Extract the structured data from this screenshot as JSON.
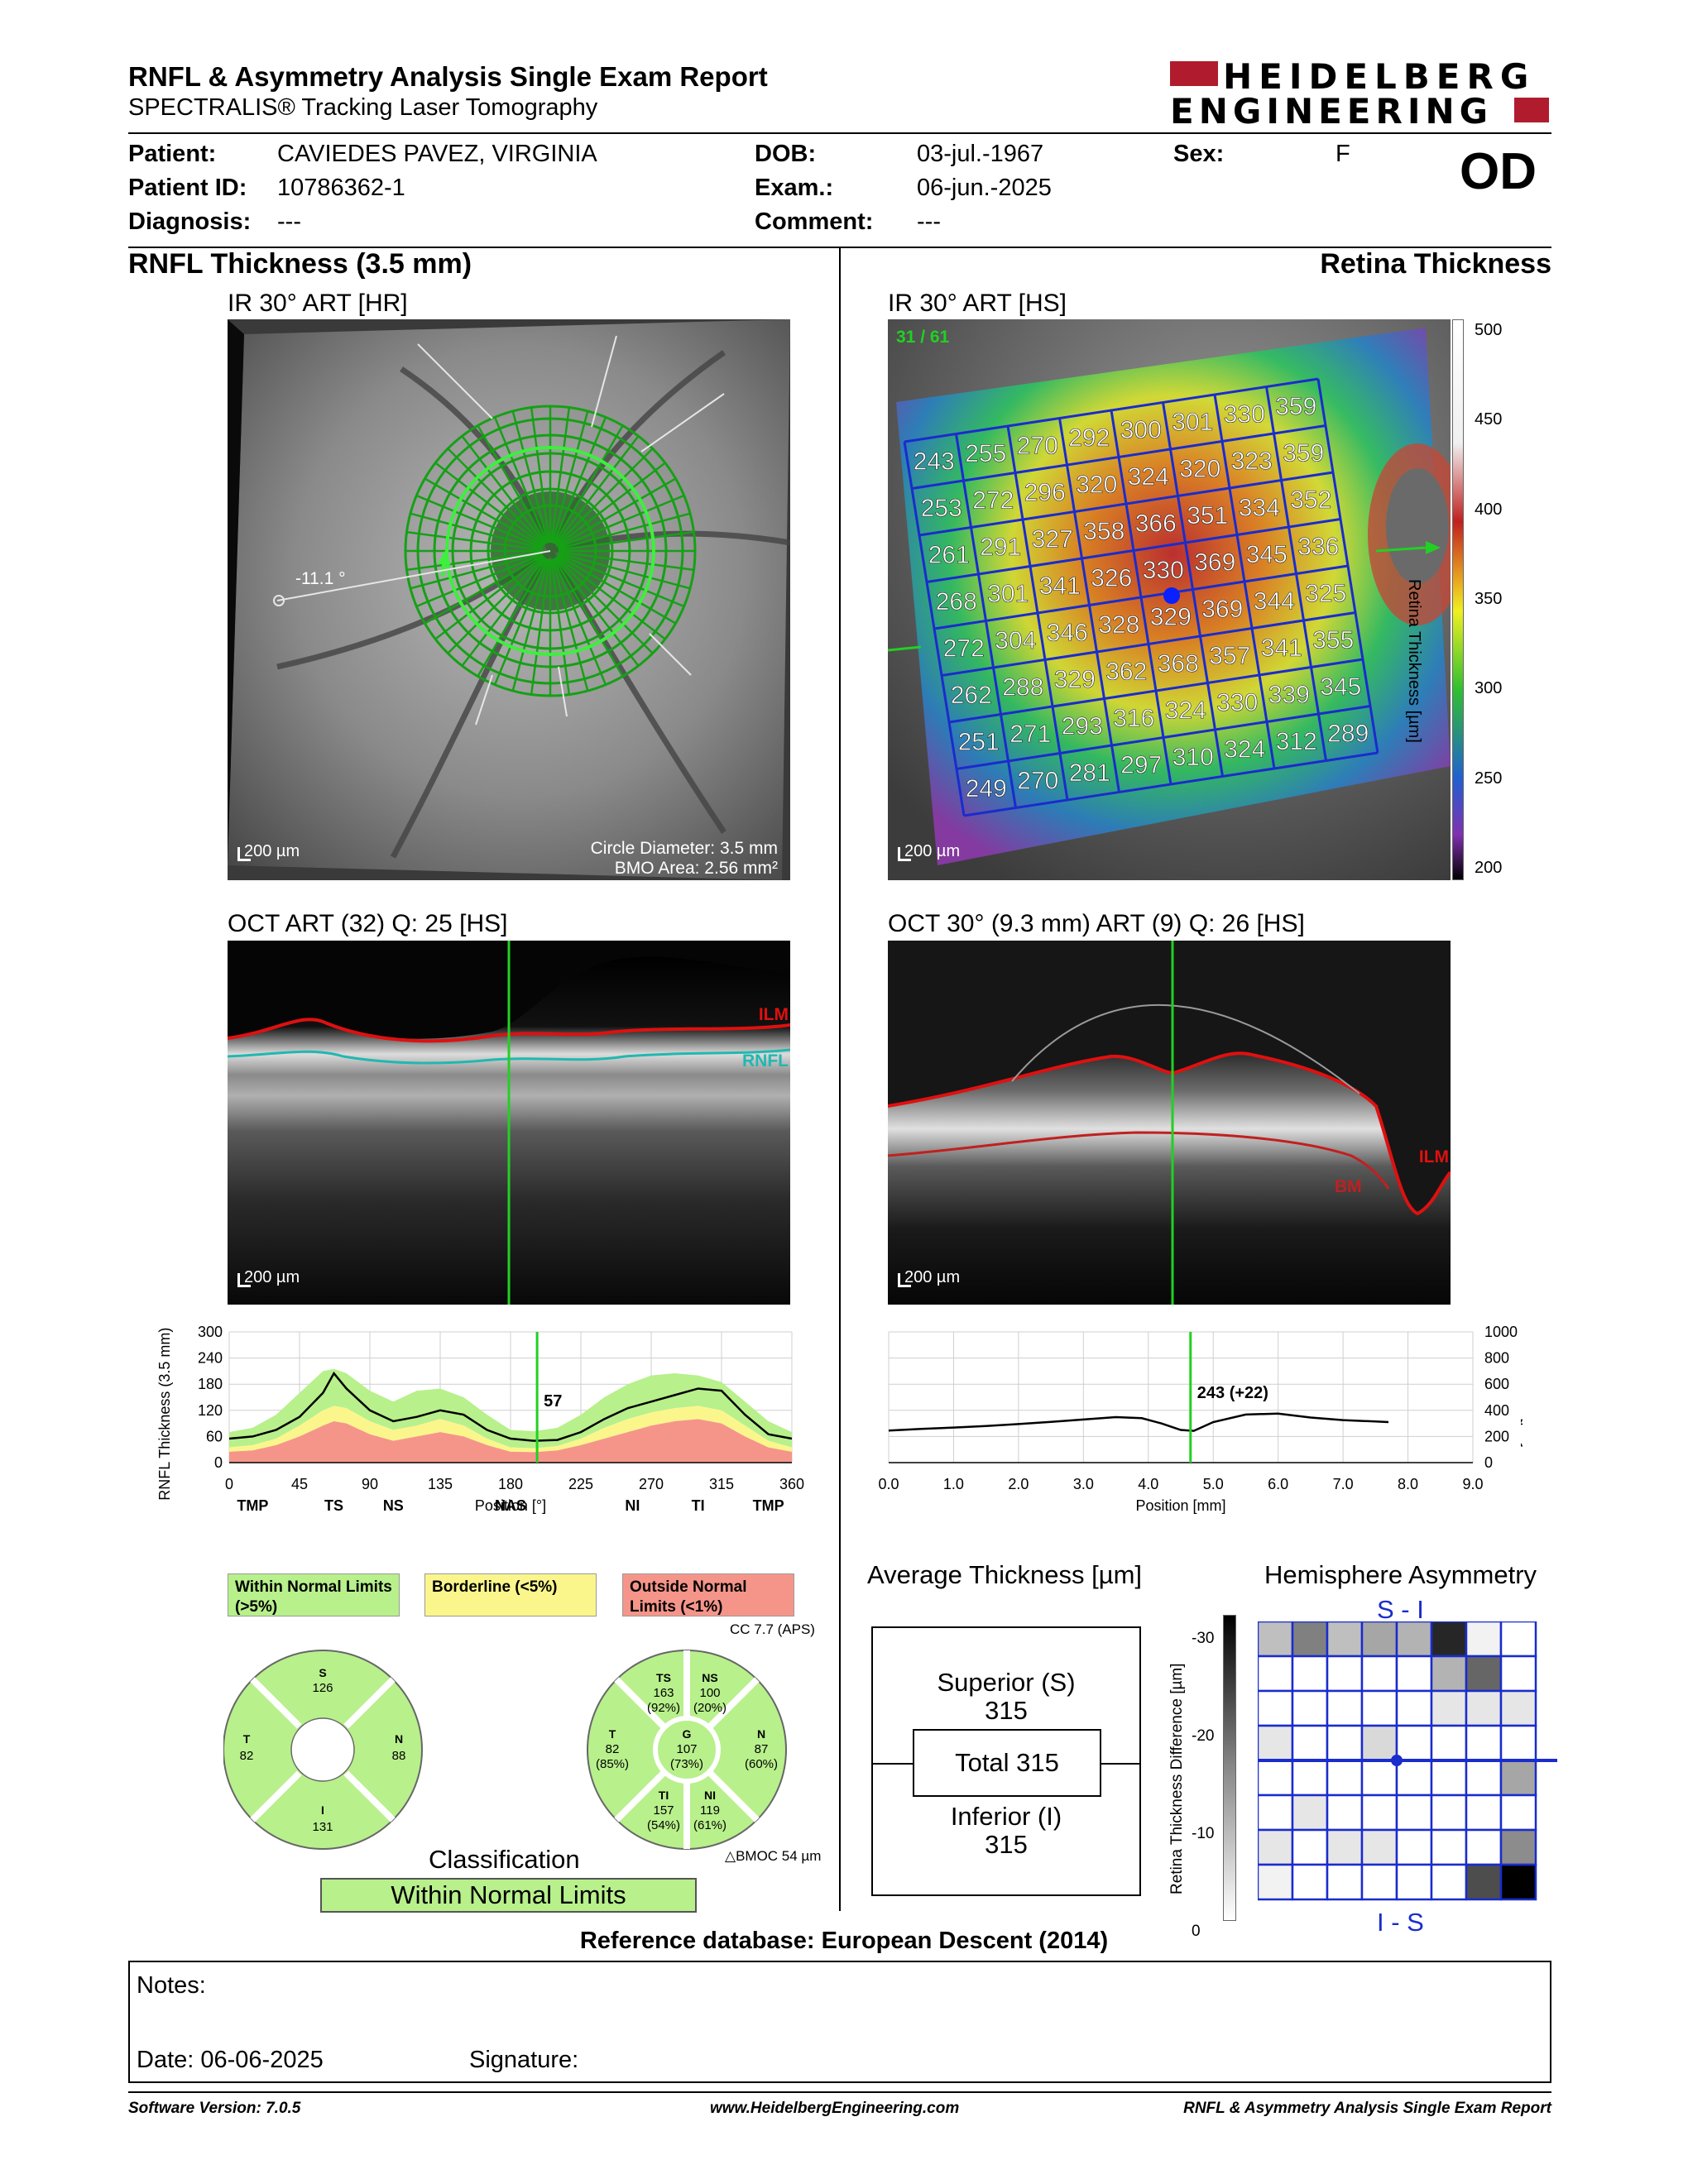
{
  "header": {
    "title": "RNFL & Asymmetry Analysis Single Exam Report",
    "subtitle": "SPECTRALIS® Tracking Laser Tomography",
    "logo_line1": "HEIDELBERG",
    "logo_line2": "ENGINEERING"
  },
  "patient": {
    "patient_label": "Patient:",
    "patient_value": "CAVIEDES PAVEZ, VIRGINIA",
    "id_label": "Patient ID:",
    "id_value": "10786362-1",
    "diag_label": "Diagnosis:",
    "diag_value": "---",
    "dob_label": "DOB:",
    "dob_value": "03-jul.-1967",
    "exam_label": "Exam.:",
    "exam_value": "06-jun.-2025",
    "comment_label": "Comment:",
    "comment_value": "---",
    "sex_label": "Sex:",
    "sex_value": "F",
    "eye": "OD"
  },
  "left": {
    "section_title": "RNFL Thickness (3.5 mm)",
    "ir_label": "IR 30° ART [HR]",
    "ir_scale": "200 µm",
    "circle_diameter": "Circle Diameter: 3.5 mm",
    "bmo_area": "BMO Area: 2.56 mm²",
    "angle": "-11.1 °",
    "oct_label": "OCT ART (32) Q: 25 [HS]",
    "oct_scale": "200 µm",
    "ilm": "ILM",
    "rnfl": "RNFL"
  },
  "right": {
    "section_title": "Retina Thickness",
    "ir_label": "IR 30° ART [HS]",
    "ir_scale": "200 µm",
    "scan_count": "31 / 61",
    "oct_label": "OCT 30° (9.3 mm) ART (9) Q: 26 [HS]",
    "oct_scale": "200 µm",
    "ilm": "ILM",
    "bm": "BM",
    "colorbar_title": "Retina Thickness [µm]",
    "colorbar_ticks": [
      "500",
      "450",
      "400",
      "350",
      "300",
      "250",
      "200"
    ]
  },
  "grid_values": [
    [
      243,
      255,
      270,
      292,
      300,
      301,
      330,
      359
    ],
    [
      253,
      272,
      296,
      320,
      324,
      320,
      323,
      359
    ],
    [
      261,
      291,
      327,
      358,
      366,
      351,
      334,
      352
    ],
    [
      268,
      301,
      341,
      326,
      330,
      369,
      345,
      336
    ],
    [
      272,
      304,
      346,
      328,
      329,
      369,
      344,
      325
    ],
    [
      262,
      288,
      329,
      362,
      368,
      357,
      341,
      355
    ],
    [
      251,
      271,
      293,
      316,
      324,
      330,
      339,
      345
    ],
    [
      249,
      270,
      281,
      297,
      310,
      324,
      312,
      289
    ]
  ],
  "chart_data": [
    {
      "type": "line",
      "title": "",
      "ylabel": "RNFL Thickness (3.5 mm) [µm]",
      "xlabel": "Position [°]",
      "xlim": [
        0,
        360
      ],
      "ylim": [
        0,
        300
      ],
      "yticks": [
        "300",
        "240",
        "180",
        "120",
        "60",
        "0"
      ],
      "xticks": [
        "0",
        "45",
        "90",
        "135",
        "180",
        "225",
        "270",
        "315",
        "360"
      ],
      "sector_labels": [
        "TMP",
        "TS",
        "NS",
        "NAS",
        "NI",
        "TI",
        "TMP"
      ],
      "cursor_value": "57",
      "x": [
        0,
        15,
        30,
        45,
        60,
        67,
        75,
        90,
        105,
        120,
        135,
        150,
        165,
        180,
        195,
        210,
        225,
        240,
        255,
        270,
        285,
        300,
        315,
        330,
        345,
        360
      ],
      "series": [
        {
          "values": [
            55,
            60,
            75,
            105,
            160,
            205,
            170,
            120,
            95,
            105,
            120,
            110,
            75,
            55,
            50,
            52,
            70,
            100,
            125,
            140,
            155,
            170,
            165,
            110,
            65,
            55
          ]
        }
      ],
      "normal_upper": [
        70,
        80,
        110,
        160,
        210,
        215,
        205,
        165,
        140,
        165,
        170,
        150,
        110,
        75,
        72,
        80,
        110,
        150,
        180,
        200,
        205,
        200,
        185,
        140,
        95,
        70
      ],
      "normal_lower": [
        35,
        40,
        55,
        85,
        120,
        130,
        125,
        95,
        75,
        85,
        100,
        85,
        55,
        35,
        33,
        38,
        55,
        80,
        100,
        115,
        125,
        130,
        120,
        85,
        50,
        35
      ],
      "outside_upper": [
        25,
        28,
        40,
        60,
        85,
        95,
        90,
        65,
        50,
        60,
        70,
        60,
        40,
        25,
        24,
        28,
        40,
        55,
        70,
        85,
        95,
        100,
        90,
        60,
        35,
        25
      ]
    },
    {
      "type": "line",
      "title": "",
      "ylabel": "Thickness [µm]",
      "xlabel": "Position [mm]",
      "xlim": [
        0,
        9
      ],
      "ylim": [
        0,
        1000
      ],
      "yticks": [
        "1000",
        "800",
        "600",
        "400",
        "200",
        "0"
      ],
      "xticks": [
        "0.0",
        "1.0",
        "2.0",
        "3.0",
        "4.0",
        "5.0",
        "6.0",
        "7.0",
        "8.0",
        "9.0"
      ],
      "cursor_value": "243 (+22)",
      "x": [
        0,
        0.5,
        1.0,
        1.5,
        2.0,
        2.5,
        3.0,
        3.5,
        3.9,
        4.2,
        4.5,
        4.7,
        5.0,
        5.5,
        6.0,
        6.5,
        7.0,
        7.5,
        7.7
      ],
      "series": [
        {
          "values": [
            245,
            258,
            268,
            280,
            295,
            312,
            330,
            348,
            340,
            300,
            250,
            243,
            310,
            368,
            375,
            345,
            325,
            315,
            310
          ]
        }
      ]
    }
  ],
  "legend": {
    "wnl": "Within Normal Limits (>5%)",
    "border": "Borderline (<5%)",
    "onl": "Outside Normal Limits (<1%)"
  },
  "pie_small": {
    "S": "126",
    "T": "82",
    "N": "88",
    "I": "131"
  },
  "pie_large": {
    "cc": "CC 7.7 (APS)",
    "TS": [
      "TS",
      "163",
      "(92%)"
    ],
    "NS": [
      "NS",
      "100",
      "(20%)"
    ],
    "T": [
      "T",
      "82",
      "(85%)"
    ],
    "G": [
      "G",
      "107",
      "(73%)"
    ],
    "N": [
      "N",
      "87",
      "(60%)"
    ],
    "TI": [
      "TI",
      "157",
      "(54%)"
    ],
    "NI": [
      "NI",
      "119",
      "(61%)"
    ],
    "bmo": "BMOC 54 µm"
  },
  "classification": {
    "title": "Classification",
    "result": "Within Normal Limits"
  },
  "average": {
    "title": "Average Thickness [µm]",
    "sup_label": "Superior (S)",
    "sup_value": "315",
    "total": "Total 315",
    "inf_label": "Inferior (I)",
    "inf_value": "315"
  },
  "asym": {
    "title": "Hemisphere Asymmetry",
    "top": "S - I",
    "bottom": "I - S",
    "axis_title": "Retina Thickness Difference [µm]",
    "ticks": [
      "-30",
      "-20",
      "-10",
      "0"
    ],
    "grid": [
      [
        0.25,
        0.5,
        0.25,
        0.35,
        0.3,
        0.85,
        0.05,
        0.0
      ],
      [
        0.0,
        0.0,
        0.0,
        0.0,
        0.0,
        0.3,
        0.6,
        0.0
      ],
      [
        0.0,
        0.0,
        0.0,
        0.0,
        0.0,
        0.1,
        0.1,
        0.1
      ],
      [
        0.1,
        0.0,
        0.0,
        0.15,
        0.0,
        0.0,
        0.0,
        0.0
      ],
      [
        0.0,
        0.0,
        0.0,
        0.0,
        0.0,
        0.0,
        0.0,
        0.35
      ],
      [
        0.0,
        0.1,
        0.0,
        0.0,
        0.0,
        0.0,
        0.0,
        0.0
      ],
      [
        0.1,
        0.0,
        0.1,
        0.1,
        0.0,
        0.0,
        0.0,
        0.45
      ],
      [
        0.05,
        0.0,
        0.0,
        0.0,
        0.0,
        0.0,
        0.7,
        1.0
      ]
    ]
  },
  "reference": "Reference database: European Descent (2014)",
  "notes": {
    "label": "Notes:",
    "date": "Date: 06-06-2025",
    "signature": "Signature:"
  },
  "footer": {
    "version": "Software Version: 7.0.5",
    "url": "www.HeidelbergEngineering.com",
    "report": "RNFL & Asymmetry Analysis Single Exam Report"
  },
  "colors": {
    "wnl": "#b8f08c",
    "border": "#fbf68c",
    "onl": "#f5958a",
    "grid_blue": "#1a2ccc",
    "green": "#22d022"
  }
}
